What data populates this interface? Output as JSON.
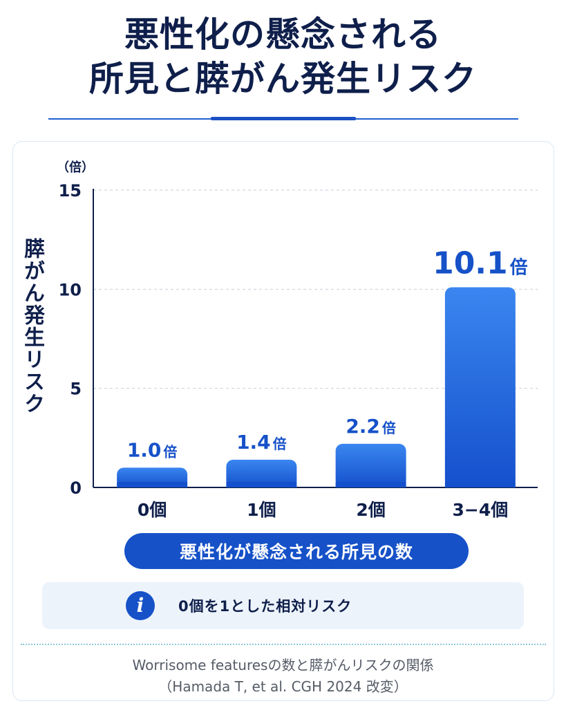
{
  "title": {
    "line1": "悪性化の懸念される",
    "line2": "所見と膵がん発生リスク"
  },
  "chart_data": {
    "type": "bar",
    "categories": [
      "0個",
      "1個",
      "2個",
      "3−4個"
    ],
    "values": [
      1.0,
      1.4,
      2.2,
      10.1
    ],
    "value_labels": [
      "1.0",
      "1.4",
      "2.2",
      "10.1"
    ],
    "value_unit": "倍",
    "ylabel": "膵がん発生リスク",
    "y_unit": "（倍）",
    "xlabel": "悪性化が懸念される所見の数",
    "ylim": [
      0,
      15
    ],
    "yticks": [
      0,
      5,
      10,
      15
    ],
    "grid": true,
    "bar_color_top": "#3a86f0",
    "bar_color_bottom": "#1550cc"
  },
  "note": {
    "icon": "info-icon",
    "text": "0個を1とした相対リスク"
  },
  "source": {
    "line1": "Worrisome featuresの数と膵がんリスクの関係",
    "line2": "（Hamada T, et al. CGH 2024 改変）"
  }
}
